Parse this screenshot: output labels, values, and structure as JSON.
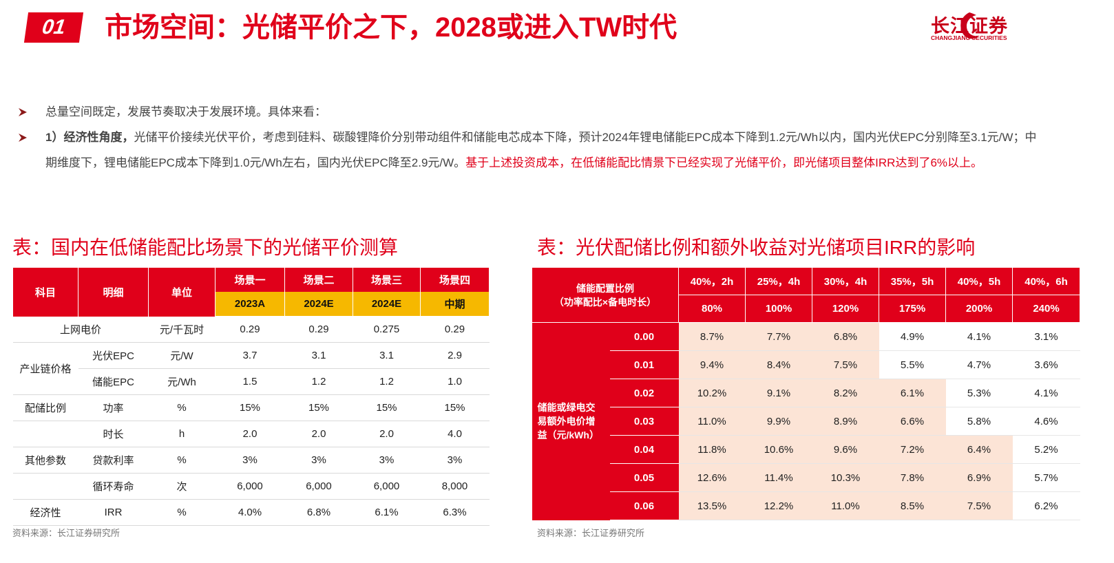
{
  "header": {
    "badge": "01",
    "title": "市场空间：光储平价之下，2028或进入TW时代",
    "logo_cn": "长江证券",
    "logo_en": "CHANGJIANG SECURITIES"
  },
  "bullets": [
    {
      "parts": [
        {
          "text": "总量空间既定，发展节奏取决于发展环境。具体来看："
        }
      ]
    },
    {
      "parts": [
        {
          "text": "1）经济性角度，",
          "style": "bold"
        },
        {
          "text": "光储平价接续光伏平价，考虑到硅料、碳酸锂降价分别带动组件和储能电芯成本下降，预计2024年锂电储能EPC成本下降到1.2元/Wh以内，国内光伏EPC分别降至3.1元/W；中期维度下，锂电储能EPC成本下降到1.0元/Wh左右，国内光伏EPC降至2.9元/W。"
        },
        {
          "text": "基于上述投资成本，在低储能配比情景下已经实现了光储平价，即光储项目整体IRR达到了6%以上。",
          "style": "red"
        }
      ]
    }
  ],
  "left_table": {
    "title": "表：国内在低储能配比场景下的光储平价测算",
    "columns": [
      "科目",
      "明细",
      "单位"
    ],
    "scenarios": [
      "场景一",
      "场景二",
      "场景三",
      "场景四"
    ],
    "periods": [
      "2023A",
      "2024E",
      "2024E",
      "中期"
    ],
    "rows": [
      {
        "subject": "上网电价",
        "unit": "元/千瓦时",
        "values": [
          "0.29",
          "0.29",
          "0.275",
          "0.29"
        ]
      },
      {
        "subject": "产业链价格",
        "items": [
          {
            "detail": "光伏EPC",
            "unit": "元/W",
            "values": [
              "3.7",
              "3.1",
              "3.1",
              "2.9"
            ]
          },
          {
            "detail": "储能EPC",
            "unit": "元/Wh",
            "values": [
              "1.5",
              "1.2",
              "1.2",
              "1.0"
            ]
          }
        ]
      },
      {
        "subject": "配储比例",
        "detail": "功率",
        "unit": "%",
        "values": [
          "15%",
          "15%",
          "15%",
          "15%"
        ]
      },
      {
        "detail": "时长",
        "unit": "h",
        "values": [
          "2.0",
          "2.0",
          "2.0",
          "4.0"
        ]
      },
      {
        "subject": "其他参数",
        "detail": "贷款利率",
        "unit": "%",
        "values": [
          "3%",
          "3%",
          "3%",
          "3%"
        ]
      },
      {
        "detail": "循环寿命",
        "unit": "次",
        "values": [
          "6,000",
          "6,000",
          "6,000",
          "8,000"
        ]
      },
      {
        "subject": "经济性",
        "detail": "IRR",
        "unit": "%",
        "values": [
          "4.0%",
          "6.8%",
          "6.1%",
          "6.3%"
        ]
      }
    ],
    "source": "资料来源：长江证券研究所"
  },
  "right_table": {
    "title": "表：光伏配储比例和额外收益对光储项目IRR的影响",
    "corner": [
      "储能配置比例",
      "（功率配比×备电时长）"
    ],
    "configs": [
      "40%，2h",
      "25%，4h",
      "30%，4h",
      "35%，5h",
      "40%，5h",
      "40%，6h"
    ],
    "ratios": [
      "80%",
      "100%",
      "120%",
      "175%",
      "200%",
      "240%"
    ],
    "row_label": "储能或绿电交易额外电价增益（元/kWh）",
    "increments": [
      "0.00",
      "0.01",
      "0.02",
      "0.03",
      "0.04",
      "0.05",
      "0.06"
    ],
    "values": [
      [
        "8.7%",
        "7.7%",
        "6.8%",
        "4.9%",
        "4.1%",
        "3.1%"
      ],
      [
        "9.4%",
        "8.4%",
        "7.5%",
        "5.5%",
        "4.7%",
        "3.6%"
      ],
      [
        "10.2%",
        "9.1%",
        "8.2%",
        "6.1%",
        "5.3%",
        "4.1%"
      ],
      [
        "11.0%",
        "9.9%",
        "8.9%",
        "6.6%",
        "5.8%",
        "4.6%"
      ],
      [
        "11.8%",
        "10.6%",
        "9.6%",
        "7.2%",
        "6.4%",
        "5.2%"
      ],
      [
        "12.6%",
        "11.4%",
        "10.3%",
        "7.8%",
        "6.9%",
        "5.7%"
      ],
      [
        "13.5%",
        "12.2%",
        "11.0%",
        "8.5%",
        "7.5%",
        "6.2%"
      ]
    ],
    "highlight": [
      [
        true,
        true,
        true,
        false,
        false,
        false
      ],
      [
        true,
        true,
        true,
        false,
        false,
        false
      ],
      [
        true,
        true,
        true,
        true,
        false,
        false
      ],
      [
        true,
        true,
        true,
        true,
        false,
        false
      ],
      [
        true,
        true,
        true,
        true,
        true,
        false
      ],
      [
        true,
        true,
        true,
        true,
        true,
        false
      ],
      [
        true,
        true,
        true,
        true,
        true,
        false
      ]
    ],
    "source": "资料来源：长江证券研究所"
  }
}
